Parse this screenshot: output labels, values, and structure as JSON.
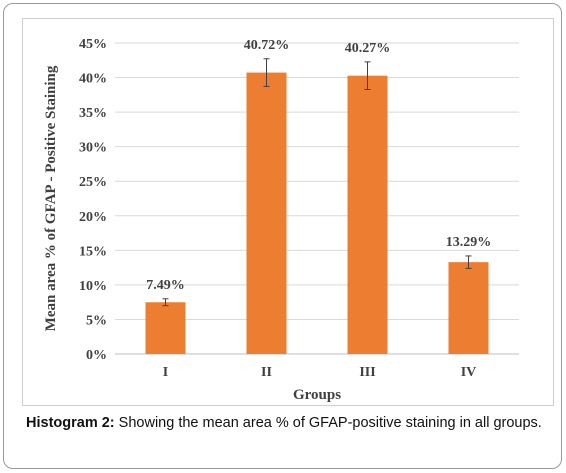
{
  "chart_data": {
    "type": "bar",
    "categories": [
      "I",
      "II",
      "III",
      "IV"
    ],
    "values": [
      7.49,
      40.72,
      40.27,
      13.29
    ],
    "error": [
      0.5,
      2.0,
      2.0,
      0.9
    ],
    "data_labels": [
      "7.49%",
      "40.72%",
      "40.27%",
      "13.29%"
    ],
    "xlabel": "Groups",
    "ylabel": "Mean area % of GFAP - Positive Staining",
    "ylim": [
      0,
      45
    ],
    "yticks": [
      0,
      5,
      10,
      15,
      20,
      25,
      30,
      35,
      40,
      45
    ],
    "ytick_labels": [
      "0%",
      "5%",
      "10%",
      "15%",
      "20%",
      "25%",
      "30%",
      "35%",
      "40%",
      "45%"
    ],
    "grid": true,
    "bar_color": "#ED7D31"
  },
  "caption": {
    "label": "Histogram 2:",
    "text": " Showing the mean area % of GFAP-positive staining in all groups."
  }
}
